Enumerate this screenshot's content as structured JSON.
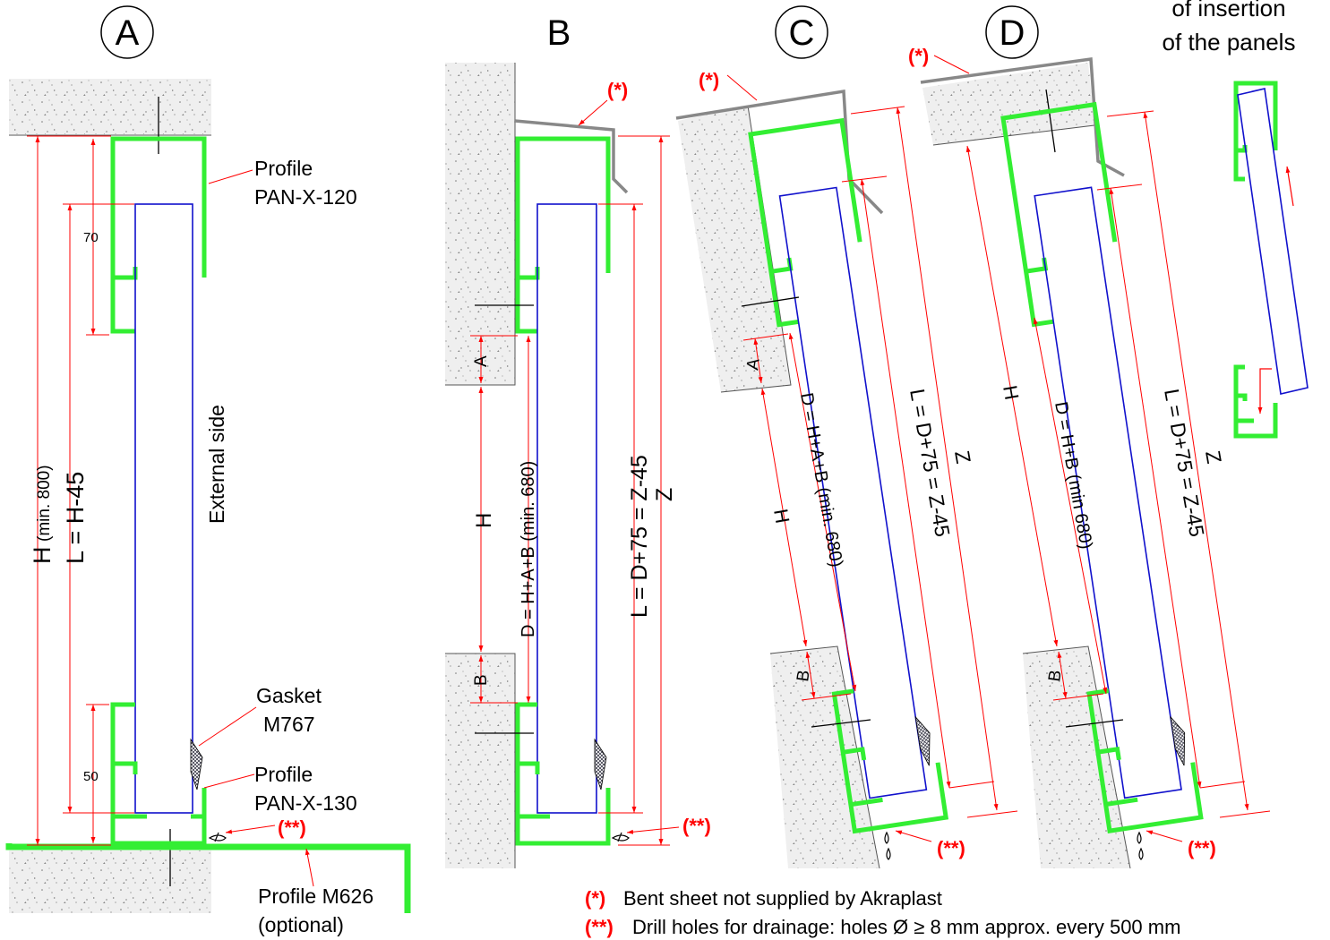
{
  "title": "",
  "colors": {
    "profile": "#33ee33",
    "panel": "#1111cc",
    "dimension": "#ff0000",
    "sheet": "#888888",
    "concrete": "#eeeeee"
  },
  "sections": {
    "A": {
      "letter": "A",
      "profile_top": "Profile\nPAN-X-120",
      "profile_top_l1": "Profile",
      "profile_top_l2": "PAN-X-120",
      "gasket_l1": "Gasket",
      "gasket_l2": "M767",
      "profile_bot_l1": "Profile",
      "profile_bot_l2": "PAN-X-130",
      "profile_m626_l1": "Profile M626",
      "profile_m626_l2": "(optional)",
      "external_side": "External side",
      "dim_h_main": "H",
      "dim_h_min": "(min. 800)",
      "dim_l": "L = H-45",
      "dim_70": "70",
      "dim_50": "50",
      "mark_drain": "(**)"
    },
    "B": {
      "letter": "B",
      "mark_sheet": "(*)",
      "mark_drain": "(**)",
      "dim_a": "A",
      "dim_b": "B",
      "dim_h": "H",
      "dim_d": "D = H+A+B (min. 680)",
      "dim_l": "L = D+75 = Z-45",
      "dim_z": "Z"
    },
    "C": {
      "letter": "C",
      "mark_sheet": "(*)",
      "mark_drain": "(**)",
      "dim_a": "A",
      "dim_b": "B",
      "dim_h": "H",
      "dim_d": "D = H+A+B (min. 680)",
      "dim_l": "L = D+75 = Z-45",
      "dim_z": "Z"
    },
    "D": {
      "letter": "D",
      "mark_sheet": "(*)",
      "mark_drain": "(**)",
      "dim_b": "B",
      "dim_h": "H",
      "dim_d": "D = H+B (min 680)",
      "dim_l": "L = D+75 = Z-45",
      "dim_z": "Z"
    }
  },
  "insertion_l1": "of insertion",
  "insertion_l2": "of  the panels",
  "notes": [
    {
      "mark": "(*)",
      "text": "Bent sheet not supplied by Akraplast"
    },
    {
      "mark": "(**)",
      "text": "Drill holes for drainage: holes Ø ≥ 8 mm approx. every 500 mm"
    }
  ]
}
